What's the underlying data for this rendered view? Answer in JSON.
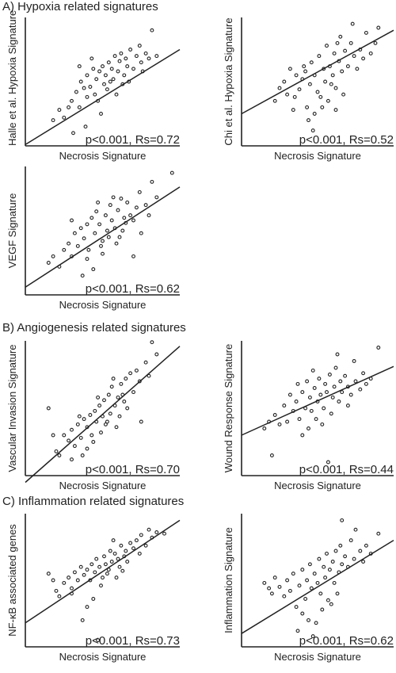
{
  "sections": {
    "a": "A) Hypoxia related signatures",
    "b": "B) Angiogenesis related signatures",
    "c": "C) Inflammation related signatures"
  },
  "chart_data": [
    {
      "type": "scatter",
      "id": "halle",
      "xlabel": "Necrosis Signature",
      "ylabel": "Halle et al. Hypoxia Signature",
      "annotation": "p<0.001, Rs=0.72",
      "xlim": [
        0,
        100
      ],
      "ylim": [
        0,
        100
      ],
      "fit_line": {
        "y_at_xmin": 1,
        "y_at_xmax": 75
      },
      "points": [
        [
          18,
          20
        ],
        [
          22,
          28
        ],
        [
          25,
          22
        ],
        [
          28,
          30
        ],
        [
          30,
          35
        ],
        [
          33,
          42
        ],
        [
          35,
          30
        ],
        [
          36,
          50
        ],
        [
          38,
          45
        ],
        [
          40,
          55
        ],
        [
          42,
          46
        ],
        [
          44,
          60
        ],
        [
          45,
          40
        ],
        [
          46,
          52
        ],
        [
          48,
          58
        ],
        [
          50,
          62
        ],
        [
          51,
          48
        ],
        [
          52,
          55
        ],
        [
          54,
          65
        ],
        [
          55,
          50
        ],
        [
          56,
          60
        ],
        [
          58,
          70
        ],
        [
          60,
          58
        ],
        [
          61,
          66
        ],
        [
          62,
          72
        ],
        [
          64,
          55
        ],
        [
          65,
          68
        ],
        [
          66,
          62
        ],
        [
          68,
          75
        ],
        [
          70,
          60
        ],
        [
          72,
          70
        ],
        [
          74,
          78
        ],
        [
          75,
          65
        ],
        [
          76,
          58
        ],
        [
          78,
          72
        ],
        [
          80,
          68
        ],
        [
          82,
          90
        ],
        [
          85,
          70
        ],
        [
          40,
          38
        ],
        [
          47,
          35
        ],
        [
          53,
          44
        ],
        [
          57,
          52
        ],
        [
          63,
          48
        ],
        [
          67,
          50
        ],
        [
          35,
          62
        ],
        [
          43,
          68
        ],
        [
          59,
          40
        ],
        [
          49,
          25
        ],
        [
          39,
          15
        ],
        [
          31,
          10
        ]
      ]
    },
    {
      "type": "scatter",
      "id": "chi",
      "xlabel": "Necrosis Signature",
      "ylabel": "Chi et al. Hypoxia Signature",
      "annotation": "p<0.001, Rs=0.52",
      "xlim": [
        0,
        100
      ],
      "ylim": [
        0,
        100
      ],
      "fit_line": {
        "y_at_xmin": 25,
        "y_at_xmax": 90
      },
      "points": [
        [
          22,
          35
        ],
        [
          25,
          45
        ],
        [
          28,
          50
        ],
        [
          30,
          40
        ],
        [
          32,
          60
        ],
        [
          35,
          38
        ],
        [
          38,
          44
        ],
        [
          40,
          52
        ],
        [
          42,
          58
        ],
        [
          43,
          30
        ],
        [
          45,
          48
        ],
        [
          46,
          65
        ],
        [
          48,
          55
        ],
        [
          50,
          42
        ],
        [
          51,
          70
        ],
        [
          52,
          38
        ],
        [
          54,
          60
        ],
        [
          55,
          50
        ],
        [
          56,
          78
        ],
        [
          58,
          62
        ],
        [
          60,
          55
        ],
        [
          61,
          72
        ],
        [
          62,
          45
        ],
        [
          64,
          66
        ],
        [
          65,
          85
        ],
        [
          66,
          58
        ],
        [
          68,
          74
        ],
        [
          70,
          62
        ],
        [
          72,
          80
        ],
        [
          74,
          70
        ],
        [
          76,
          60
        ],
        [
          78,
          75
        ],
        [
          80,
          68
        ],
        [
          82,
          88
        ],
        [
          85,
          72
        ],
        [
          88,
          80
        ],
        [
          90,
          92
        ],
        [
          44,
          20
        ],
        [
          48,
          25
        ],
        [
          53,
          30
        ],
        [
          57,
          35
        ],
        [
          62,
          28
        ],
        [
          67,
          40
        ],
        [
          36,
          55
        ],
        [
          41,
          62
        ],
        [
          59,
          48
        ],
        [
          47,
          12
        ],
        [
          73,
          95
        ],
        [
          34,
          28
        ],
        [
          63,
          80
        ]
      ]
    },
    {
      "type": "scatter",
      "id": "vegf",
      "xlabel": "Necrosis Signature",
      "ylabel": "VEGF Signature",
      "annotation": "p<0.001, Rs=0.62",
      "xlim": [
        0,
        100
      ],
      "ylim": [
        0,
        100
      ],
      "fit_line": {
        "y_at_xmin": 6,
        "y_at_xmax": 84
      },
      "points": [
        [
          15,
          25
        ],
        [
          18,
          30
        ],
        [
          22,
          22
        ],
        [
          25,
          35
        ],
        [
          28,
          40
        ],
        [
          30,
          30
        ],
        [
          32,
          48
        ],
        [
          34,
          38
        ],
        [
          36,
          52
        ],
        [
          38,
          44
        ],
        [
          40,
          55
        ],
        [
          41,
          35
        ],
        [
          43,
          60
        ],
        [
          45,
          48
        ],
        [
          46,
          65
        ],
        [
          48,
          55
        ],
        [
          50,
          42
        ],
        [
          52,
          62
        ],
        [
          53,
          50
        ],
        [
          55,
          70
        ],
        [
          56,
          58
        ],
        [
          58,
          52
        ],
        [
          60,
          66
        ],
        [
          61,
          45
        ],
        [
          62,
          75
        ],
        [
          64,
          60
        ],
        [
          65,
          56
        ],
        [
          66,
          72
        ],
        [
          68,
          62
        ],
        [
          70,
          58
        ],
        [
          72,
          68
        ],
        [
          74,
          80
        ],
        [
          75,
          48
        ],
        [
          78,
          70
        ],
        [
          80,
          62
        ],
        [
          82,
          88
        ],
        [
          85,
          76
        ],
        [
          40,
          28
        ],
        [
          44,
          20
        ],
        [
          49,
          38
        ],
        [
          54,
          45
        ],
        [
          59,
          40
        ],
        [
          63,
          50
        ],
        [
          37,
          15
        ],
        [
          47,
          72
        ],
        [
          57,
          76
        ],
        [
          70,
          30
        ],
        [
          30,
          58
        ],
        [
          95,
          95
        ],
        [
          50,
          32
        ]
      ]
    },
    {
      "type": "scatter",
      "id": "vascular",
      "xlabel": "Necrosis Signature",
      "ylabel": "Vascular Invasion Signature",
      "annotation": "p<0.001, Rs=0.70",
      "xlim": [
        0,
        100
      ],
      "ylim": [
        0,
        100
      ],
      "fit_line": {
        "y_at_xmin": -5,
        "y_at_xmax": 96
      },
      "points": [
        [
          15,
          50
        ],
        [
          18,
          30
        ],
        [
          20,
          18
        ],
        [
          22,
          15
        ],
        [
          25,
          30
        ],
        [
          28,
          26
        ],
        [
          30,
          34
        ],
        [
          32,
          22
        ],
        [
          34,
          38
        ],
        [
          36,
          28
        ],
        [
          38,
          42
        ],
        [
          40,
          36
        ],
        [
          42,
          45
        ],
        [
          43,
          30
        ],
        [
          45,
          48
        ],
        [
          46,
          40
        ],
        [
          48,
          52
        ],
        [
          50,
          44
        ],
        [
          51,
          56
        ],
        [
          52,
          38
        ],
        [
          54,
          60
        ],
        [
          55,
          46
        ],
        [
          56,
          66
        ],
        [
          58,
          52
        ],
        [
          60,
          58
        ],
        [
          61,
          44
        ],
        [
          62,
          68
        ],
        [
          64,
          55
        ],
        [
          65,
          72
        ],
        [
          66,
          50
        ],
        [
          68,
          76
        ],
        [
          70,
          62
        ],
        [
          72,
          78
        ],
        [
          74,
          70
        ],
        [
          75,
          40
        ],
        [
          78,
          84
        ],
        [
          80,
          74
        ],
        [
          82,
          99
        ],
        [
          85,
          90
        ],
        [
          40,
          20
        ],
        [
          44,
          25
        ],
        [
          49,
          32
        ],
        [
          53,
          40
        ],
        [
          59,
          36
        ],
        [
          63,
          60
        ],
        [
          37,
          15
        ],
        [
          47,
          58
        ],
        [
          57,
          72
        ],
        [
          30,
          12
        ],
        [
          35,
          44
        ]
      ]
    },
    {
      "type": "scatter",
      "id": "wound",
      "xlabel": "Necrosis Signature",
      "ylabel": "Wound Response Signature",
      "annotation": "p<0.001, Rs=0.44",
      "xlim": [
        0,
        100
      ],
      "ylim": [
        0,
        100
      ],
      "fit_line": {
        "y_at_xmin": 30,
        "y_at_xmax": 81
      },
      "points": [
        [
          15,
          35
        ],
        [
          18,
          40
        ],
        [
          20,
          15
        ],
        [
          22,
          45
        ],
        [
          25,
          38
        ],
        [
          28,
          52
        ],
        [
          30,
          40
        ],
        [
          32,
          60
        ],
        [
          34,
          48
        ],
        [
          36,
          55
        ],
        [
          38,
          42
        ],
        [
          40,
          62
        ],
        [
          42,
          50
        ],
        [
          43,
          70
        ],
        [
          45,
          58
        ],
        [
          46,
          48
        ],
        [
          48,
          65
        ],
        [
          50,
          55
        ],
        [
          51,
          72
        ],
        [
          52,
          60
        ],
        [
          54,
          50
        ],
        [
          55,
          68
        ],
        [
          56,
          62
        ],
        [
          58,
          75
        ],
        [
          60,
          58
        ],
        [
          61,
          66
        ],
        [
          62,
          80
        ],
        [
          64,
          55
        ],
        [
          65,
          70
        ],
        [
          66,
          62
        ],
        [
          68,
          74
        ],
        [
          70,
          66
        ],
        [
          72,
          60
        ],
        [
          74,
          85
        ],
        [
          75,
          70
        ],
        [
          78,
          64
        ],
        [
          80,
          76
        ],
        [
          82,
          68
        ],
        [
          85,
          72
        ],
        [
          90,
          95
        ],
        [
          40,
          30
        ],
        [
          44,
          35
        ],
        [
          49,
          42
        ],
        [
          53,
          38
        ],
        [
          59,
          46
        ],
        [
          63,
          90
        ],
        [
          37,
          68
        ],
        [
          47,
          78
        ],
        [
          57,
          10
        ],
        [
          70,
          52
        ]
      ]
    },
    {
      "type": "scatter",
      "id": "nfkb",
      "xlabel": "Necrosis Signature",
      "ylabel": "NF-κB associated genes",
      "annotation": "p<0.001, Rs=0.73",
      "xlim": [
        0,
        100
      ],
      "ylim": [
        0,
        100
      ],
      "fit_line": {
        "y_at_xmin": 18,
        "y_at_xmax": 95
      },
      "points": [
        [
          15,
          55
        ],
        [
          18,
          50
        ],
        [
          20,
          42
        ],
        [
          22,
          38
        ],
        [
          25,
          48
        ],
        [
          28,
          52
        ],
        [
          30,
          44
        ],
        [
          32,
          56
        ],
        [
          34,
          50
        ],
        [
          36,
          60
        ],
        [
          38,
          54
        ],
        [
          40,
          58
        ],
        [
          42,
          50
        ],
        [
          43,
          62
        ],
        [
          45,
          56
        ],
        [
          46,
          66
        ],
        [
          48,
          60
        ],
        [
          50,
          52
        ],
        [
          51,
          68
        ],
        [
          52,
          62
        ],
        [
          54,
          58
        ],
        [
          55,
          72
        ],
        [
          56,
          64
        ],
        [
          58,
          70
        ],
        [
          60,
          66
        ],
        [
          61,
          60
        ],
        [
          62,
          76
        ],
        [
          64,
          68
        ],
        [
          65,
          72
        ],
        [
          66,
          64
        ],
        [
          68,
          78
        ],
        [
          70,
          74
        ],
        [
          72,
          80
        ],
        [
          74,
          70
        ],
        [
          75,
          84
        ],
        [
          78,
          76
        ],
        [
          80,
          88
        ],
        [
          82,
          82
        ],
        [
          85,
          86
        ],
        [
          90,
          85
        ],
        [
          40,
          30
        ],
        [
          44,
          36
        ],
        [
          49,
          46
        ],
        [
          53,
          55
        ],
        [
          59,
          52
        ],
        [
          63,
          57
        ],
        [
          37,
          20
        ],
        [
          47,
          5
        ],
        [
          57,
          80
        ],
        [
          30,
          40
        ]
      ]
    },
    {
      "type": "scatter",
      "id": "inflammation",
      "xlabel": "Necrosis Signature",
      "ylabel": "Inflammation Signature",
      "annotation": "p<0.001, Rs=0.62",
      "xlim": [
        0,
        100
      ],
      "ylim": [
        0,
        100
      ],
      "fit_line": {
        "y_at_xmin": 10,
        "y_at_xmax": 80
      },
      "points": [
        [
          15,
          48
        ],
        [
          18,
          44
        ],
        [
          20,
          40
        ],
        [
          22,
          52
        ],
        [
          25,
          45
        ],
        [
          28,
          38
        ],
        [
          30,
          50
        ],
        [
          32,
          42
        ],
        [
          34,
          55
        ],
        [
          36,
          30
        ],
        [
          38,
          46
        ],
        [
          40,
          58
        ],
        [
          42,
          36
        ],
        [
          43,
          50
        ],
        [
          45,
          62
        ],
        [
          46,
          44
        ],
        [
          48,
          55
        ],
        [
          50,
          48
        ],
        [
          51,
          66
        ],
        [
          52,
          40
        ],
        [
          54,
          60
        ],
        [
          55,
          52
        ],
        [
          56,
          70
        ],
        [
          58,
          58
        ],
        [
          60,
          64
        ],
        [
          61,
          48
        ],
        [
          62,
          72
        ],
        [
          64,
          56
        ],
        [
          65,
          76
        ],
        [
          66,
          62
        ],
        [
          68,
          68
        ],
        [
          70,
          60
        ],
        [
          72,
          80
        ],
        [
          74,
          66
        ],
        [
          75,
          88
        ],
        [
          78,
          72
        ],
        [
          80,
          64
        ],
        [
          82,
          76
        ],
        [
          85,
          70
        ],
        [
          90,
          85
        ],
        [
          40,
          25
        ],
        [
          44,
          20
        ],
        [
          49,
          18
        ],
        [
          53,
          28
        ],
        [
          59,
          32
        ],
        [
          63,
          40
        ],
        [
          37,
          12
        ],
        [
          47,
          8
        ],
        [
          57,
          35
        ],
        [
          66,
          95
        ]
      ]
    }
  ]
}
